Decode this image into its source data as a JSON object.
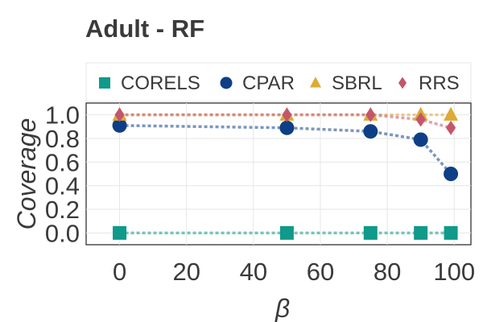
{
  "chart_data": {
    "type": "line",
    "title": "Adult - RF",
    "xlabel": "β",
    "ylabel": "Coverage",
    "xlim": [
      -10,
      105
    ],
    "ylim": [
      -0.1,
      1.1
    ],
    "xticks": [
      0,
      20,
      40,
      60,
      80,
      100
    ],
    "yticks": [
      0.0,
      0.2,
      0.4,
      0.6,
      0.8,
      1.0
    ],
    "xtick_labels": [
      "0",
      "20",
      "40",
      "60",
      "80",
      "100"
    ],
    "ytick_labels": [
      "0.0",
      "0.2",
      "0.4",
      "0.6",
      "0.8",
      "1.0"
    ],
    "grid": true,
    "legend_position": "top",
    "series": [
      {
        "name": "CORELS",
        "color": "#0f9a8a",
        "marker": "square",
        "x": [
          0,
          50,
          75,
          90,
          99
        ],
        "values": [
          0.0,
          0.0,
          0.0,
          0.0,
          0.0
        ]
      },
      {
        "name": "CPAR",
        "color": "#0e3f86",
        "marker": "circle",
        "x": [
          0,
          50,
          75,
          90,
          99
        ],
        "values": [
          0.91,
          0.89,
          0.86,
          0.79,
          0.5
        ]
      },
      {
        "name": "SBRL",
        "color": "#ddaa33",
        "marker": "triangle",
        "x": [
          0,
          50,
          75,
          90,
          99
        ],
        "values": [
          1.0,
          1.0,
          1.0,
          1.0,
          1.0
        ]
      },
      {
        "name": "RRS",
        "color": "#c4566a",
        "marker": "diamond",
        "x": [
          0,
          50,
          75,
          90,
          99
        ],
        "values": [
          1.0,
          1.0,
          1.0,
          0.96,
          0.89
        ]
      }
    ]
  }
}
